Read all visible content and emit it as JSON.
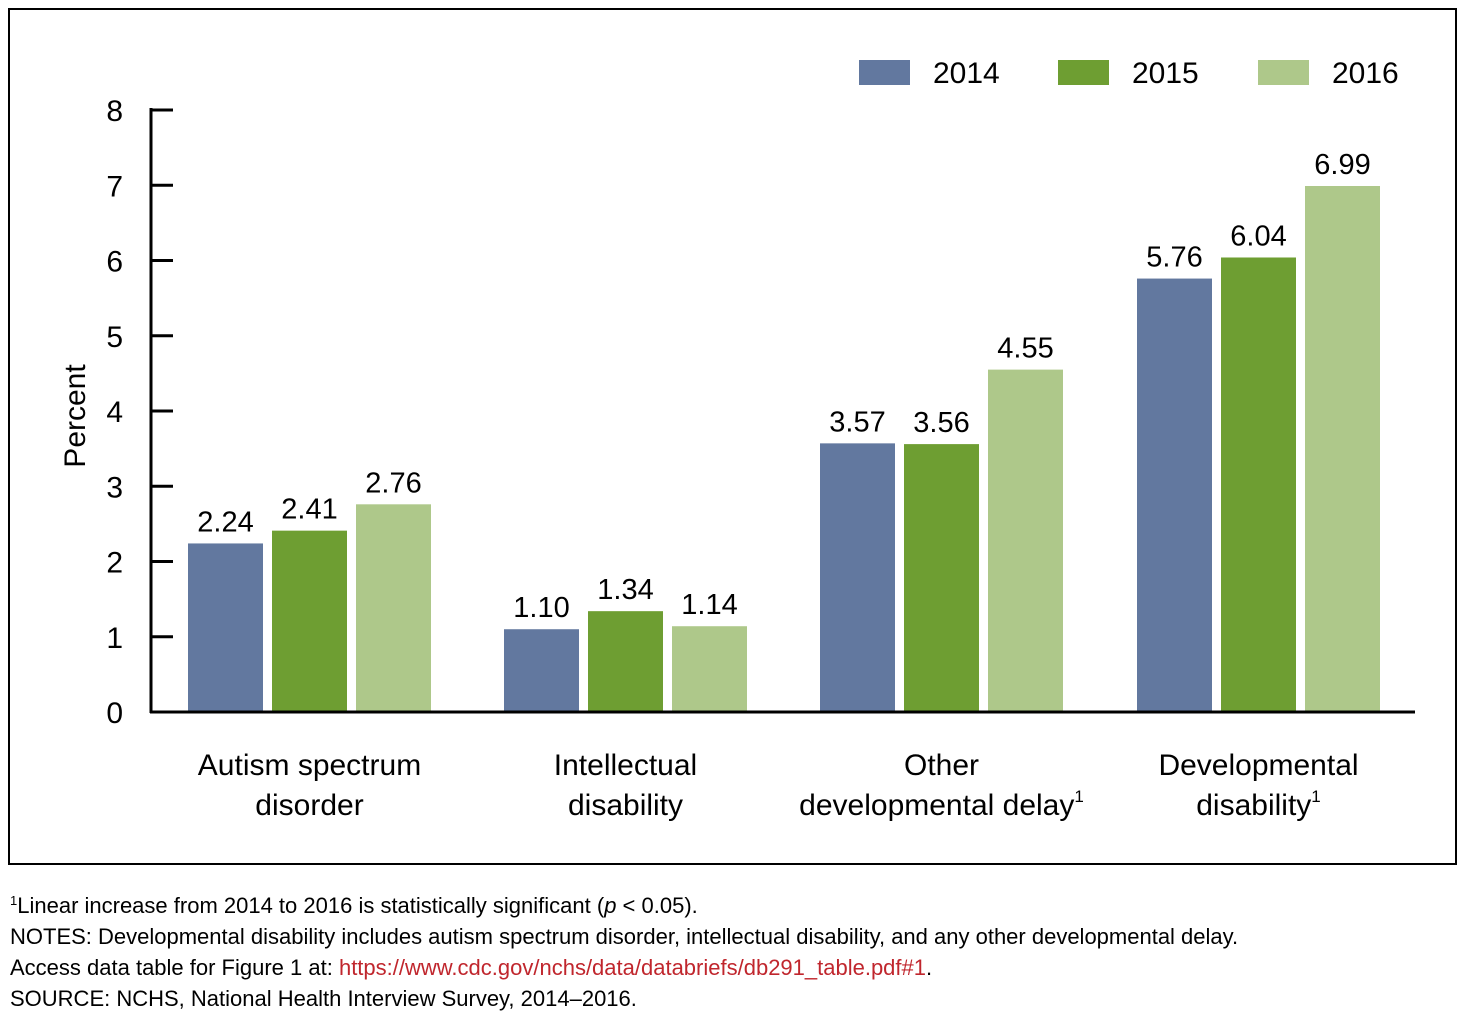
{
  "chart_data": {
    "type": "bar",
    "title": "",
    "xlabel": "",
    "ylabel": "Percent",
    "ylim": [
      0,
      8
    ],
    "yticks": [
      0,
      1,
      2,
      3,
      4,
      5,
      6,
      7,
      8
    ],
    "categories": [
      {
        "lines": [
          "Autism spectrum",
          "disorder"
        ],
        "footnote": ""
      },
      {
        "lines": [
          "Intellectual",
          "disability"
        ],
        "footnote": ""
      },
      {
        "lines": [
          "Other",
          "developmental delay"
        ],
        "footnote": "1"
      },
      {
        "lines": [
          "Developmental",
          "disability"
        ],
        "footnote": "1"
      }
    ],
    "series": [
      {
        "name": "2014",
        "color": "#62789f",
        "values": [
          2.24,
          1.1,
          3.57,
          5.76
        ],
        "labels": [
          "2.24",
          "1.10",
          "3.57",
          "5.76"
        ]
      },
      {
        "name": "2015",
        "color": "#6e9e32",
        "values": [
          2.41,
          1.34,
          3.56,
          6.04
        ],
        "labels": [
          "2.41",
          "1.34",
          "3.56",
          "6.04"
        ]
      },
      {
        "name": "2016",
        "color": "#aec88a",
        "values": [
          2.76,
          1.14,
          4.55,
          6.99
        ],
        "labels": [
          "2.76",
          "1.14",
          "4.55",
          "6.99"
        ]
      }
    ],
    "legend_position": "top-right",
    "grid": false
  },
  "footnotes": {
    "sig_marker": "1",
    "sig_text_before": "Linear increase from 2014 to 2016 is statistically significant (",
    "sig_p": "p",
    "sig_text_after": " < 0.05).",
    "notes": "NOTES: Developmental disability includes autism spectrum disorder, intellectual disability, and any other developmental delay.",
    "access_text": "Access data table for Figure 1 at: ",
    "access_link": "https://www.cdc.gov/nchs/data/databriefs/db291_table.pdf#1",
    "access_end": ".",
    "source": "SOURCE: NCHS, National Health Interview Survey, 2014–2016."
  }
}
